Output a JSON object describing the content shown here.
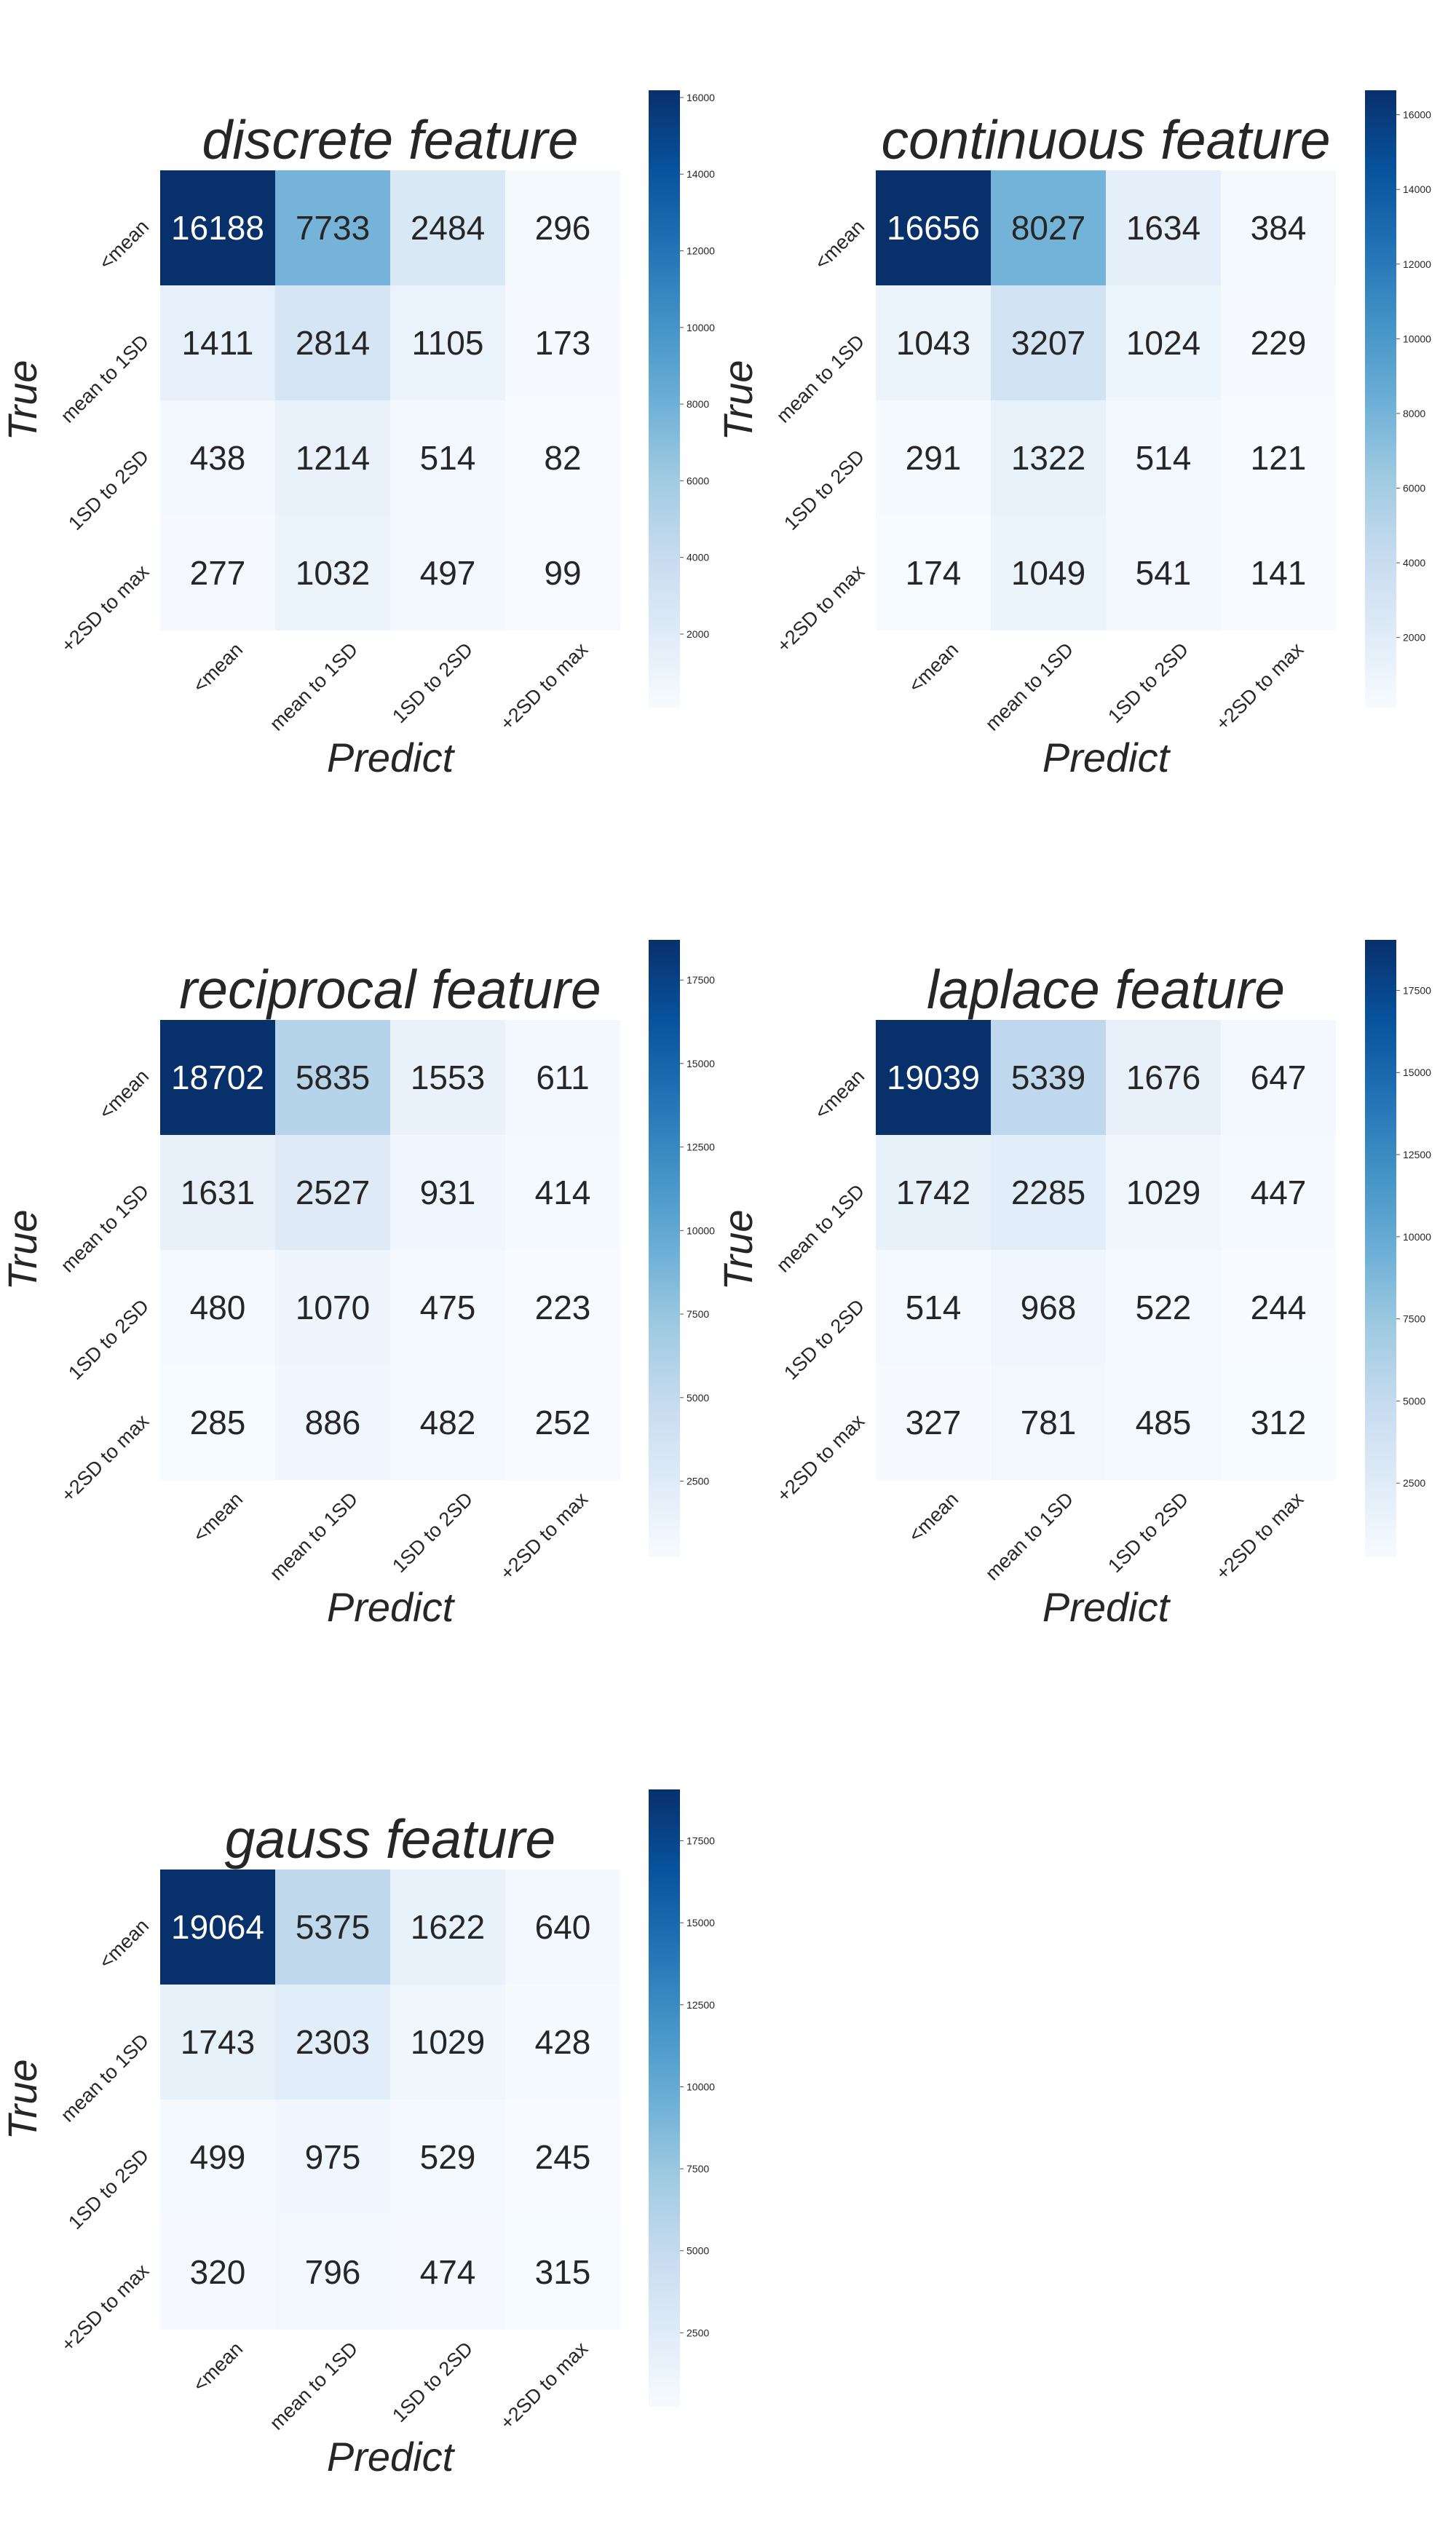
{
  "chart_data": [
    {
      "type": "heatmap",
      "title": "discrete feature",
      "xlabel": "Predict",
      "ylabel": "True",
      "x_categories": [
        "<mean",
        "mean to 1SD",
        "1SD to 2SD",
        "+2SD to max"
      ],
      "y_categories": [
        "<mean",
        "mean to 1SD",
        "1SD to 2SD",
        "+2SD to max"
      ],
      "values": [
        [
          16188,
          7733,
          2484,
          296
        ],
        [
          1411,
          2814,
          1105,
          173
        ],
        [
          438,
          1214,
          514,
          82
        ],
        [
          277,
          1032,
          497,
          99
        ]
      ],
      "colorbar": {
        "range": [
          82,
          16188
        ],
        "ticks": [
          2000,
          4000,
          6000,
          8000,
          10000,
          12000,
          14000,
          16000
        ]
      },
      "colormap": "Blues"
    },
    {
      "type": "heatmap",
      "title": "continuous feature",
      "xlabel": "Predict",
      "ylabel": "True",
      "x_categories": [
        "<mean",
        "mean to 1SD",
        "1SD to 2SD",
        "+2SD to max"
      ],
      "y_categories": [
        "<mean",
        "mean to 1SD",
        "1SD to 2SD",
        "+2SD to max"
      ],
      "values": [
        [
          16656,
          8027,
          1634,
          384
        ],
        [
          1043,
          3207,
          1024,
          229
        ],
        [
          291,
          1322,
          514,
          121
        ],
        [
          174,
          1049,
          541,
          141
        ]
      ],
      "colorbar": {
        "range": [
          121,
          16656
        ],
        "ticks": [
          2000,
          4000,
          6000,
          8000,
          10000,
          12000,
          14000,
          16000
        ]
      },
      "colormap": "Blues"
    },
    {
      "type": "heatmap",
      "title": "reciprocal feature",
      "xlabel": "Predict",
      "ylabel": "True",
      "x_categories": [
        "<mean",
        "mean to 1SD",
        "1SD to 2SD",
        "+2SD to max"
      ],
      "y_categories": [
        "<mean",
        "mean to 1SD",
        "1SD to 2SD",
        "+2SD to max"
      ],
      "values": [
        [
          18702,
          5835,
          1553,
          611
        ],
        [
          1631,
          2527,
          931,
          414
        ],
        [
          480,
          1070,
          475,
          223
        ],
        [
          285,
          886,
          482,
          252
        ]
      ],
      "colorbar": {
        "range": [
          223,
          18702
        ],
        "ticks": [
          2500,
          5000,
          7500,
          10000,
          12500,
          15000,
          17500
        ]
      },
      "colormap": "Blues"
    },
    {
      "type": "heatmap",
      "title": "laplace feature",
      "xlabel": "Predict",
      "ylabel": "True",
      "x_categories": [
        "<mean",
        "mean to 1SD",
        "1SD to 2SD",
        "+2SD to max"
      ],
      "y_categories": [
        "<mean",
        "mean to 1SD",
        "1SD to 2SD",
        "+2SD to max"
      ],
      "values": [
        [
          19039,
          5339,
          1676,
          647
        ],
        [
          1742,
          2285,
          1029,
          447
        ],
        [
          514,
          968,
          522,
          244
        ],
        [
          327,
          781,
          485,
          312
        ]
      ],
      "colorbar": {
        "range": [
          244,
          19039
        ],
        "ticks": [
          2500,
          5000,
          7500,
          10000,
          12500,
          15000,
          17500
        ]
      },
      "colormap": "Blues"
    },
    {
      "type": "heatmap",
      "title": "gauss feature",
      "xlabel": "Predict",
      "ylabel": "True",
      "x_categories": [
        "<mean",
        "mean to 1SD",
        "1SD to 2SD",
        "+2SD to max"
      ],
      "y_categories": [
        "<mean",
        "mean to 1SD",
        "1SD to 2SD",
        "+2SD to max"
      ],
      "values": [
        [
          19064,
          5375,
          1622,
          640
        ],
        [
          1743,
          2303,
          1029,
          428
        ],
        [
          499,
          975,
          529,
          245
        ],
        [
          320,
          796,
          474,
          315
        ]
      ],
      "colorbar": {
        "range": [
          245,
          19064
        ],
        "ticks": [
          2500,
          5000,
          7500,
          10000,
          12500,
          15000,
          17500
        ]
      },
      "colormap": "Blues"
    }
  ],
  "colors": {
    "text_dark": "#262626",
    "text_light": "#ffffff",
    "blues": [
      "#f7fbff",
      "#deebf7",
      "#c6dbef",
      "#9ecae1",
      "#6baed6",
      "#4292c6",
      "#2171b5",
      "#08519c",
      "#08306b"
    ]
  }
}
